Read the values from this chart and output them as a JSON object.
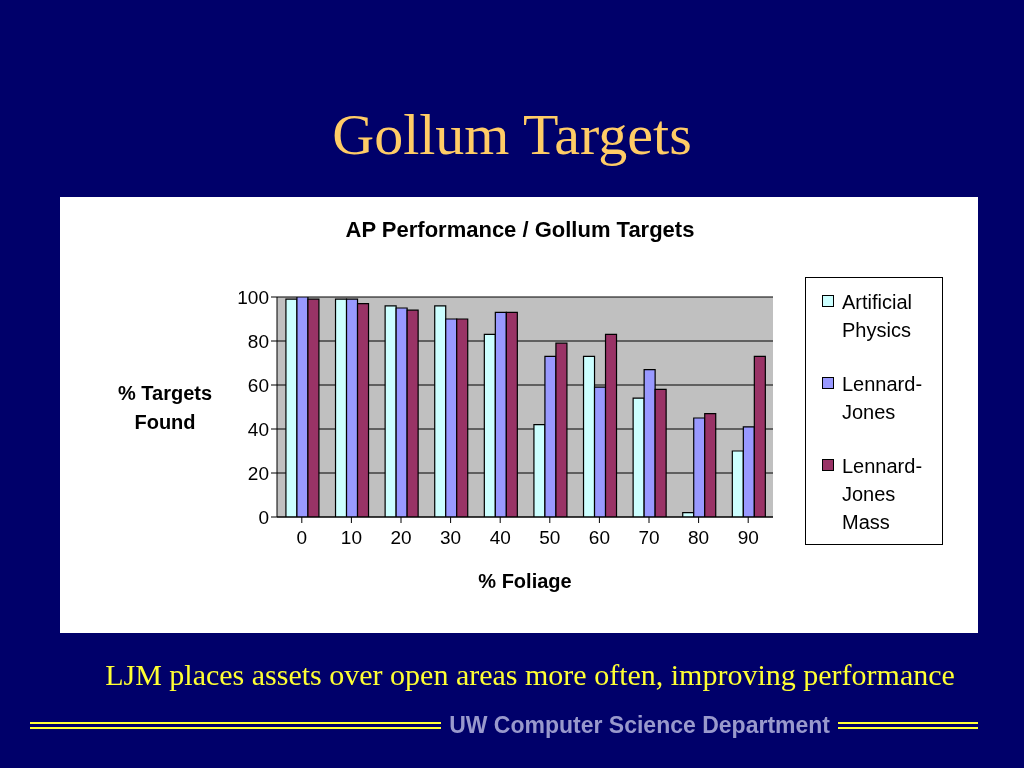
{
  "chart_data": {
    "type": "bar",
    "title": "Gollum Targets",
    "subtitle": "AP Performance / Gollum Targets",
    "xlabel": "% Foliage",
    "ylabel": "% Targets Found",
    "categories": [
      "0",
      "10",
      "20",
      "30",
      "40",
      "50",
      "60",
      "70",
      "80",
      "90"
    ],
    "series": [
      {
        "name": "Artificial Physics",
        "color": "#ccffff",
        "values": [
          99,
          99,
          96,
          96,
          83,
          42,
          73,
          54,
          2,
          30
        ]
      },
      {
        "name": "Lennard-Jones",
        "color": "#9999ff",
        "values": [
          100,
          99,
          95,
          90,
          93,
          73,
          59,
          67,
          45,
          41
        ]
      },
      {
        "name": "Lennard-Jones Mass",
        "color": "#993366",
        "values": [
          99,
          97,
          94,
          90,
          93,
          79,
          83,
          58,
          47,
          73
        ]
      }
    ],
    "ylim": [
      0,
      100
    ],
    "yticks": [
      0,
      20,
      40,
      60,
      80,
      100
    ],
    "grid": "y",
    "legend": "right",
    "annotations": [
      "LJM places assets over open areas more often, improving performance",
      "UW Computer Science Department"
    ]
  }
}
